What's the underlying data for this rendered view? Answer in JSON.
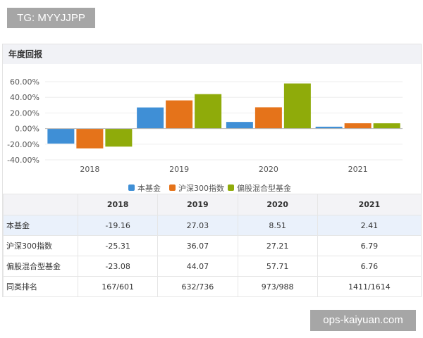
{
  "watermark_top": "TG: MYYJJPP",
  "watermark_bottom": "ops-kaiyuan.com",
  "panel_title": "年度回报",
  "chart_data": {
    "type": "bar",
    "categories": [
      "2018",
      "2019",
      "2020",
      "2021"
    ],
    "series": [
      {
        "name": "本基金",
        "color": "#3f8fd6",
        "values": [
          -19.16,
          27.03,
          8.51,
          2.41
        ]
      },
      {
        "name": "沪深300指数",
        "color": "#e5731a",
        "values": [
          -25.31,
          36.07,
          27.21,
          6.79
        ]
      },
      {
        "name": "偏股混合型基金",
        "color": "#8fab0a",
        "values": [
          -23.08,
          44.07,
          57.71,
          6.76
        ]
      }
    ],
    "ylim": [
      -40,
      60
    ],
    "yticks": [
      "60.00%",
      "40.00%",
      "20.00%",
      "0.00%",
      "-20.00%",
      "-40.00%"
    ],
    "ytick_values": [
      60,
      40,
      20,
      0,
      -20,
      -40
    ],
    "grid": true,
    "legend": "bottom"
  },
  "table": {
    "headers": [
      "",
      "2018",
      "2019",
      "2020",
      "2021"
    ],
    "rows": [
      {
        "label": "本基金",
        "values": [
          "-19.16",
          "27.03",
          "8.51",
          "2.41"
        ]
      },
      {
        "label": "沪深300指数",
        "values": [
          "-25.31",
          "36.07",
          "27.21",
          "6.79"
        ]
      },
      {
        "label": "偏股混合型基金",
        "values": [
          "-23.08",
          "44.07",
          "57.71",
          "6.76"
        ]
      },
      {
        "label": "同类排名",
        "values": [
          "167/601",
          "632/736",
          "973/988",
          "1411/1614"
        ]
      }
    ]
  }
}
